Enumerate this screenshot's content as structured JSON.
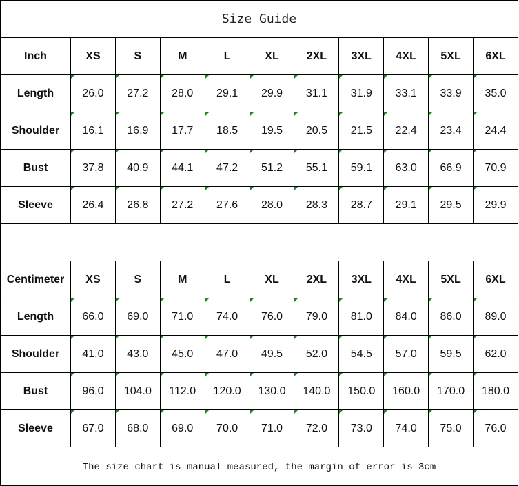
{
  "title": "Size Guide",
  "sizes": [
    "XS",
    "S",
    "M",
    "L",
    "XL",
    "2XL",
    "3XL",
    "4XL",
    "5XL",
    "6XL"
  ],
  "tables": [
    {
      "unit": "Inch",
      "rows": [
        {
          "label": "Length",
          "values": [
            "26.0",
            "27.2",
            "28.0",
            "29.1",
            "29.9",
            "31.1",
            "31.9",
            "33.1",
            "33.9",
            "35.0"
          ]
        },
        {
          "label": "Shoulder",
          "values": [
            "16.1",
            "16.9",
            "17.7",
            "18.5",
            "19.5",
            "20.5",
            "21.5",
            "22.4",
            "23.4",
            "24.4"
          ]
        },
        {
          "label": "Bust",
          "values": [
            "37.8",
            "40.9",
            "44.1",
            "47.2",
            "51.2",
            "55.1",
            "59.1",
            "63.0",
            "66.9",
            "70.9"
          ]
        },
        {
          "label": "Sleeve",
          "values": [
            "26.4",
            "26.8",
            "27.2",
            "27.6",
            "28.0",
            "28.3",
            "28.7",
            "29.1",
            "29.5",
            "29.9"
          ]
        }
      ]
    },
    {
      "unit": "Centimeter",
      "rows": [
        {
          "label": "Length",
          "values": [
            "66.0",
            "69.0",
            "71.0",
            "74.0",
            "76.0",
            "79.0",
            "81.0",
            "84.0",
            "86.0",
            "89.0"
          ]
        },
        {
          "label": "Shoulder",
          "values": [
            "41.0",
            "43.0",
            "45.0",
            "47.0",
            "49.5",
            "52.0",
            "54.5",
            "57.0",
            "59.5",
            "62.0"
          ]
        },
        {
          "label": "Bust",
          "values": [
            "96.0",
            "104.0",
            "112.0",
            "120.0",
            "130.0",
            "140.0",
            "150.0",
            "160.0",
            "170.0",
            "180.0"
          ]
        },
        {
          "label": "Sleeve",
          "values": [
            "67.0",
            "68.0",
            "69.0",
            "70.0",
            "71.0",
            "72.0",
            "73.0",
            "74.0",
            "75.0",
            "76.0"
          ]
        }
      ]
    }
  ],
  "note": "The size chart is manual measured, the margin of error is 3cm",
  "colors": {
    "corner_marker": "#1a8a1a",
    "border": "#000000"
  }
}
